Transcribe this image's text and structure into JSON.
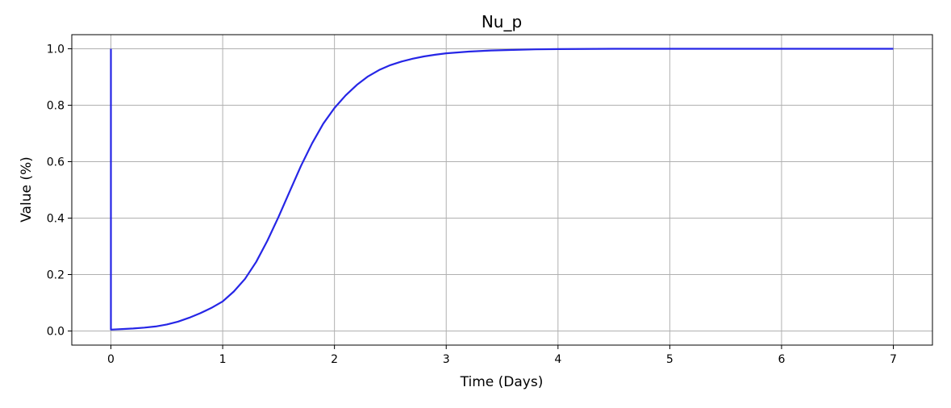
{
  "chart_data": {
    "type": "line",
    "title": "Nu_p",
    "xlabel": "Time (Days)",
    "ylabel": "Value (%)",
    "xlim": [
      -0.35,
      7.35
    ],
    "ylim": [
      -0.05,
      1.05
    ],
    "xticks": [
      0,
      1,
      2,
      3,
      4,
      5,
      6,
      7
    ],
    "xtick_labels": [
      "0",
      "1",
      "2",
      "3",
      "4",
      "5",
      "6",
      "7"
    ],
    "yticks": [
      0.0,
      0.2,
      0.4,
      0.6,
      0.8,
      1.0
    ],
    "ytick_labels": [
      "0.0",
      "0.2",
      "0.4",
      "0.6",
      "0.8",
      "1.0"
    ],
    "grid": true,
    "series": [
      {
        "color": "#2626e6",
        "x": [
          0,
          0,
          0.1,
          0.2,
          0.3,
          0.4,
          0.5,
          0.6,
          0.7,
          0.8,
          0.9,
          1.0,
          1.1,
          1.2,
          1.3,
          1.4,
          1.5,
          1.6,
          1.7,
          1.8,
          1.9,
          2.0,
          2.1,
          2.2,
          2.3,
          2.4,
          2.5,
          2.6,
          2.7,
          2.8,
          2.9,
          3.0,
          3.2,
          3.4,
          3.6,
          3.8,
          4.0,
          4.5,
          5.0,
          5.5,
          6.0,
          6.5,
          7.0
        ],
        "y": [
          1.0,
          0.005,
          0.007,
          0.009,
          0.012,
          0.016,
          0.023,
          0.033,
          0.047,
          0.063,
          0.082,
          0.105,
          0.14,
          0.185,
          0.245,
          0.32,
          0.405,
          0.495,
          0.585,
          0.665,
          0.735,
          0.79,
          0.835,
          0.872,
          0.902,
          0.925,
          0.942,
          0.955,
          0.965,
          0.973,
          0.979,
          0.984,
          0.99,
          0.994,
          0.996,
          0.998,
          0.999,
          1.0,
          1.0,
          1.0,
          1.0,
          1.0,
          1.0
        ]
      }
    ]
  }
}
